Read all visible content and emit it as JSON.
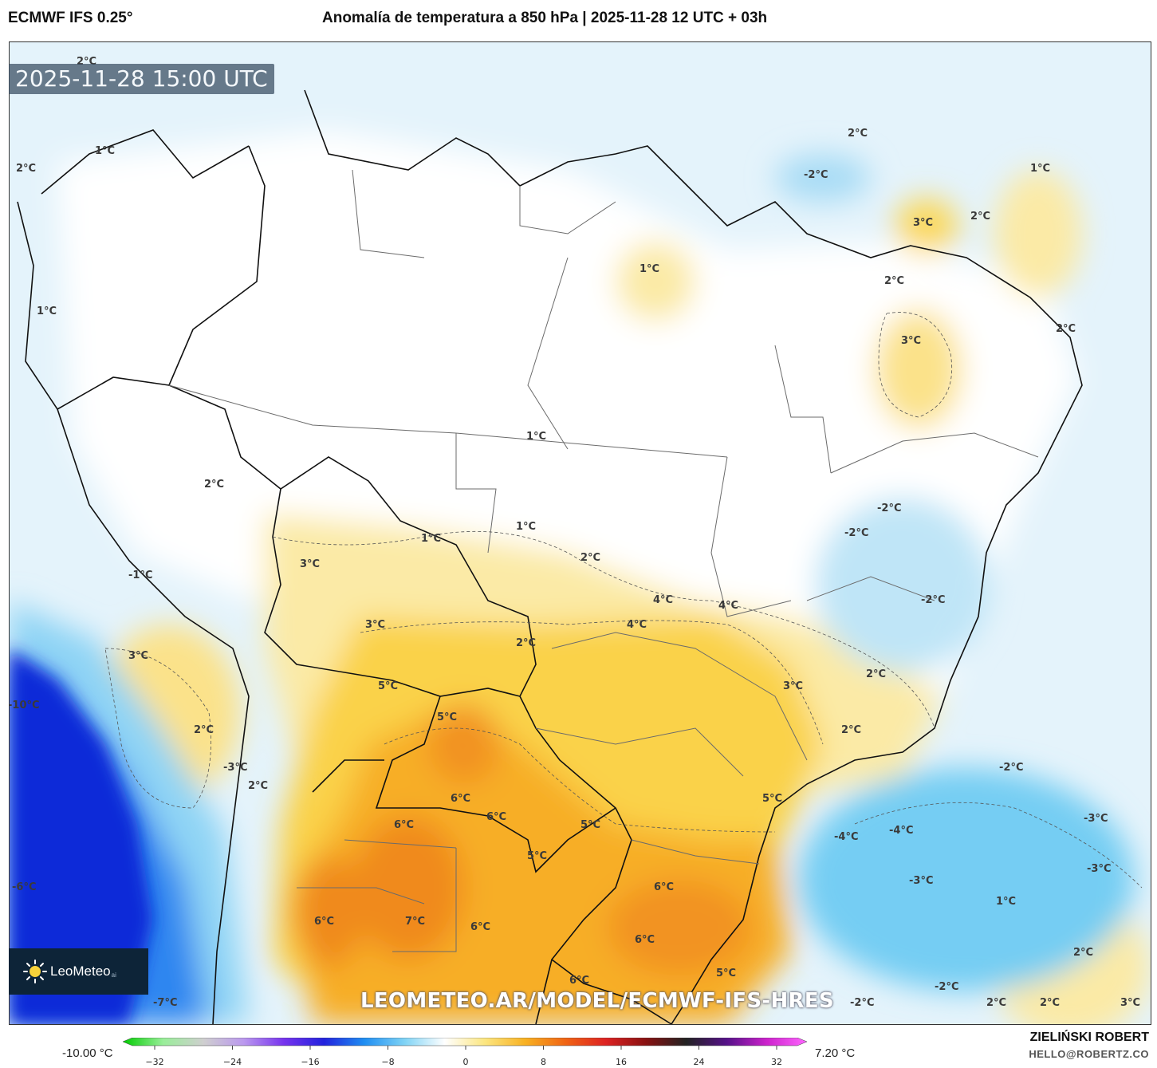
{
  "header": {
    "model": "ECMWF IFS 0.25°",
    "title": "Anomalía de temperatura a 850 hPa | 2025-11-28 12 UTC + 03h"
  },
  "map": {
    "valid_time": "2025-11-28 15:00 UTC",
    "watermark": "LEOMETEO.AR/MODEL/ECMWF-IFS-HRES",
    "logo": {
      "text": "LeoMeteo",
      "suffix": "ai"
    },
    "colors": {
      "strong_cold": "#0a2bd8",
      "cold": "#1f8ef2",
      "cool": "#7fd3f5",
      "slight_cool": "#d6eef9",
      "neutral": "#ffffff",
      "slight_warm": "#fcefae",
      "warm": "#fbd54a",
      "hot": "#f8b122",
      "very_hot": "#f18a1a",
      "border_country": "#111111",
      "border_state": "#666666"
    },
    "contour_labels": [
      {
        "text": "2°C"
      },
      {
        "text": "1°C"
      },
      {
        "text": "2°C"
      },
      {
        "text": "1°C"
      },
      {
        "text": "-2°C"
      },
      {
        "text": "2°C"
      },
      {
        "text": "1°C"
      },
      {
        "text": "3°C"
      },
      {
        "text": "2°C"
      },
      {
        "text": "1°C"
      },
      {
        "text": "2°C"
      },
      {
        "text": "2°C"
      },
      {
        "text": "3°C"
      },
      {
        "text": "1°C"
      },
      {
        "text": "2°C"
      },
      {
        "text": "-2°C"
      },
      {
        "text": "1°C"
      },
      {
        "text": "1°C"
      },
      {
        "text": "-2°C"
      },
      {
        "text": "2°C"
      },
      {
        "text": "3°C"
      },
      {
        "text": "-1°C"
      },
      {
        "text": "4°C"
      },
      {
        "text": "4°C"
      },
      {
        "text": "-2°C"
      },
      {
        "text": "4°C"
      },
      {
        "text": "3°C"
      },
      {
        "text": "3°C"
      },
      {
        "text": "2°C"
      },
      {
        "text": "2°C"
      },
      {
        "text": "5°C"
      },
      {
        "text": "3°C"
      },
      {
        "text": "-10°C"
      },
      {
        "text": "5°C"
      },
      {
        "text": "2°C"
      },
      {
        "text": "2°C"
      },
      {
        "text": "-3°C"
      },
      {
        "text": "2°C"
      },
      {
        "text": "6°C"
      },
      {
        "text": "6°C"
      },
      {
        "text": "5°C"
      },
      {
        "text": "-2°C"
      },
      {
        "text": "6°C"
      },
      {
        "text": "5°C"
      },
      {
        "text": "-4°C"
      },
      {
        "text": "-4°C"
      },
      {
        "text": "-3°C"
      },
      {
        "text": "5°C"
      },
      {
        "text": "-3°C"
      },
      {
        "text": "-3°C"
      },
      {
        "text": "-6°C"
      },
      {
        "text": "6°C"
      },
      {
        "text": "1°C"
      },
      {
        "text": "7°C"
      },
      {
        "text": "6°C"
      },
      {
        "text": "6°C"
      },
      {
        "text": "6°C"
      },
      {
        "text": "2°C"
      },
      {
        "text": "5°C"
      },
      {
        "text": "6°C"
      },
      {
        "text": "-2°C"
      },
      {
        "text": "-7°C"
      },
      {
        "text": "-2°C"
      },
      {
        "text": "2°C"
      },
      {
        "text": "2°C"
      },
      {
        "text": "3°C"
      }
    ]
  },
  "legend": {
    "min_label": "-10.00 °C",
    "max_label": "7.20 °C",
    "ticks": [
      "−32",
      "−24",
      "−16",
      "−8",
      "0",
      "8",
      "16",
      "24",
      "32"
    ],
    "stops": [
      "#00cc00",
      "#99ee99",
      "#cfcfcf",
      "#bb99ee",
      "#7733ee",
      "#2222dd",
      "#1f8ef2",
      "#7fd3f5",
      "#ffffff",
      "#fce680",
      "#f8b122",
      "#f06414",
      "#dd2222",
      "#881111",
      "#222222",
      "#551188",
      "#cc22cc",
      "#ff66ff"
    ]
  },
  "credits": {
    "author": "ZIELIŃSKI ROBERT",
    "email": "HELLO@ROBERTZ.CO"
  }
}
